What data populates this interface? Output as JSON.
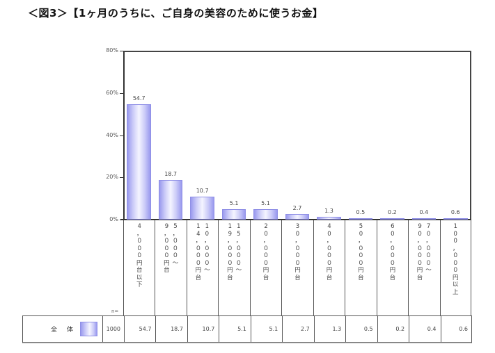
{
  "title": "＜図3＞【1ヶ月のうちに、ご自身の美容のために使うお金】",
  "chart_data": {
    "type": "bar",
    "title": "1ヶ月のうちに、ご自身の美容のために使うお金",
    "xlabel": "",
    "ylabel": "",
    "ylim": [
      0,
      80
    ],
    "yticks": [
      "0%",
      "20%",
      "40%",
      "60%",
      "80%"
    ],
    "grid": false,
    "legend_position": "bottom-table",
    "categories": [
      "4,000円台以下",
      "5,000～9,000円台",
      "10,000～14,000円台",
      "15,000～19,000円台",
      "20,000円台",
      "30,000円台",
      "40,000円台",
      "50,000円台",
      "60,000円台",
      "70,000～90,000円台",
      "100,000円以上"
    ],
    "series": [
      {
        "name": "全体",
        "n": 1000,
        "values": [
          54.7,
          18.7,
          10.7,
          5.1,
          5.1,
          2.7,
          1.3,
          0.5,
          0.2,
          0.4,
          0.6
        ]
      }
    ],
    "bar_color": "#9999ee"
  },
  "axis": {
    "y_labels": [
      "80%",
      "60%",
      "40%",
      "20%",
      "0%"
    ]
  },
  "categories_vertical": [
    {
      "cols": [
        [
          "4",
          "，",
          "０",
          "０",
          "０",
          "円",
          "台",
          "以",
          "下"
        ]
      ]
    },
    {
      "cols": [
        [
          "5",
          "，",
          "０",
          "０",
          "０",
          "～"
        ],
        [
          "9",
          "，",
          "０",
          "０",
          "０",
          "円",
          "台"
        ]
      ]
    },
    {
      "cols": [
        [
          "1",
          "0",
          "，",
          "０",
          "０",
          "０",
          "～"
        ],
        [
          "1",
          "4",
          "，",
          "０",
          "０",
          "０",
          "円",
          "台"
        ]
      ]
    },
    {
      "cols": [
        [
          "1",
          "5",
          "，",
          "０",
          "０",
          "０",
          "～"
        ],
        [
          "1",
          "9",
          "，",
          "０",
          "０",
          "０",
          "円",
          "台"
        ]
      ]
    },
    {
      "cols": [
        [
          "2",
          "0",
          "，",
          "０",
          "０",
          "０",
          "円",
          "台"
        ]
      ]
    },
    {
      "cols": [
        [
          "3",
          "0",
          "，",
          "０",
          "０",
          "０",
          "円",
          "台"
        ]
      ]
    },
    {
      "cols": [
        [
          "4",
          "0",
          "，",
          "０",
          "０",
          "０",
          "円",
          "台"
        ]
      ]
    },
    {
      "cols": [
        [
          "5",
          "0",
          "，",
          "０",
          "０",
          "０",
          "円",
          "台"
        ]
      ]
    },
    {
      "cols": [
        [
          "6",
          "0",
          "，",
          "０",
          "０",
          "０",
          "円",
          "台"
        ]
      ]
    },
    {
      "cols": [
        [
          "7",
          "0",
          "，",
          "０",
          "０",
          "０",
          "～"
        ],
        [
          "9",
          "0",
          "，",
          "０",
          "０",
          "０",
          "円",
          "台"
        ]
      ]
    },
    {
      "cols": [
        [
          "1",
          "0",
          "0",
          "，",
          "０",
          "０",
          "０",
          "円",
          "以",
          "上"
        ]
      ]
    }
  ],
  "value_labels": [
    "54.7",
    "18.7",
    "10.7",
    "5.1",
    "5.1",
    "2.7",
    "1.3",
    "0.5",
    "0.2",
    "0.4",
    "0.6"
  ],
  "table": {
    "n_header": "n=",
    "row_label_1": "全",
    "row_label_2": "体",
    "n": "1000",
    "values": [
      "54.7",
      "18.7",
      "10.7",
      "5.1",
      "5.1",
      "2.7",
      "1.3",
      "0.5",
      "0.2",
      "0.4",
      "0.6"
    ]
  }
}
